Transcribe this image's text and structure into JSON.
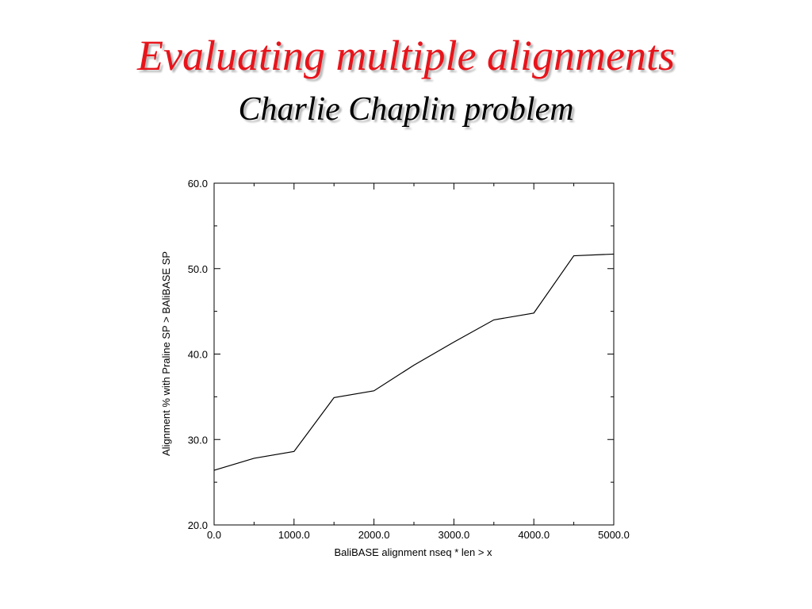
{
  "slide": {
    "title": "Evaluating multiple alignments",
    "subtitle": "Charlie Chaplin problem",
    "title_color": "#e8141b"
  },
  "chart_data": {
    "type": "line",
    "title": "",
    "xlabel": "BaliBASE alignment nseq * len > x",
    "ylabel": "Alignment % with Praline SP > BAliBASE SP",
    "xlim": [
      0,
      5000
    ],
    "ylim": [
      20,
      60
    ],
    "x_ticks": [
      "0.0",
      "1000.0",
      "2000.0",
      "3000.0",
      "4000.0",
      "5000.0"
    ],
    "y_ticks": [
      "20.0",
      "30.0",
      "40.0",
      "50.0",
      "60.0"
    ],
    "grid": false,
    "series": [
      {
        "x": [
          0,
          500,
          1000,
          1500,
          2000,
          2500,
          3000,
          3500,
          4000,
          4500,
          5000
        ],
        "y": [
          26.4,
          27.8,
          28.6,
          34.9,
          35.7,
          38.7,
          41.4,
          44.0,
          44.8,
          51.5,
          51.7
        ]
      }
    ],
    "line_color": "#000000"
  }
}
